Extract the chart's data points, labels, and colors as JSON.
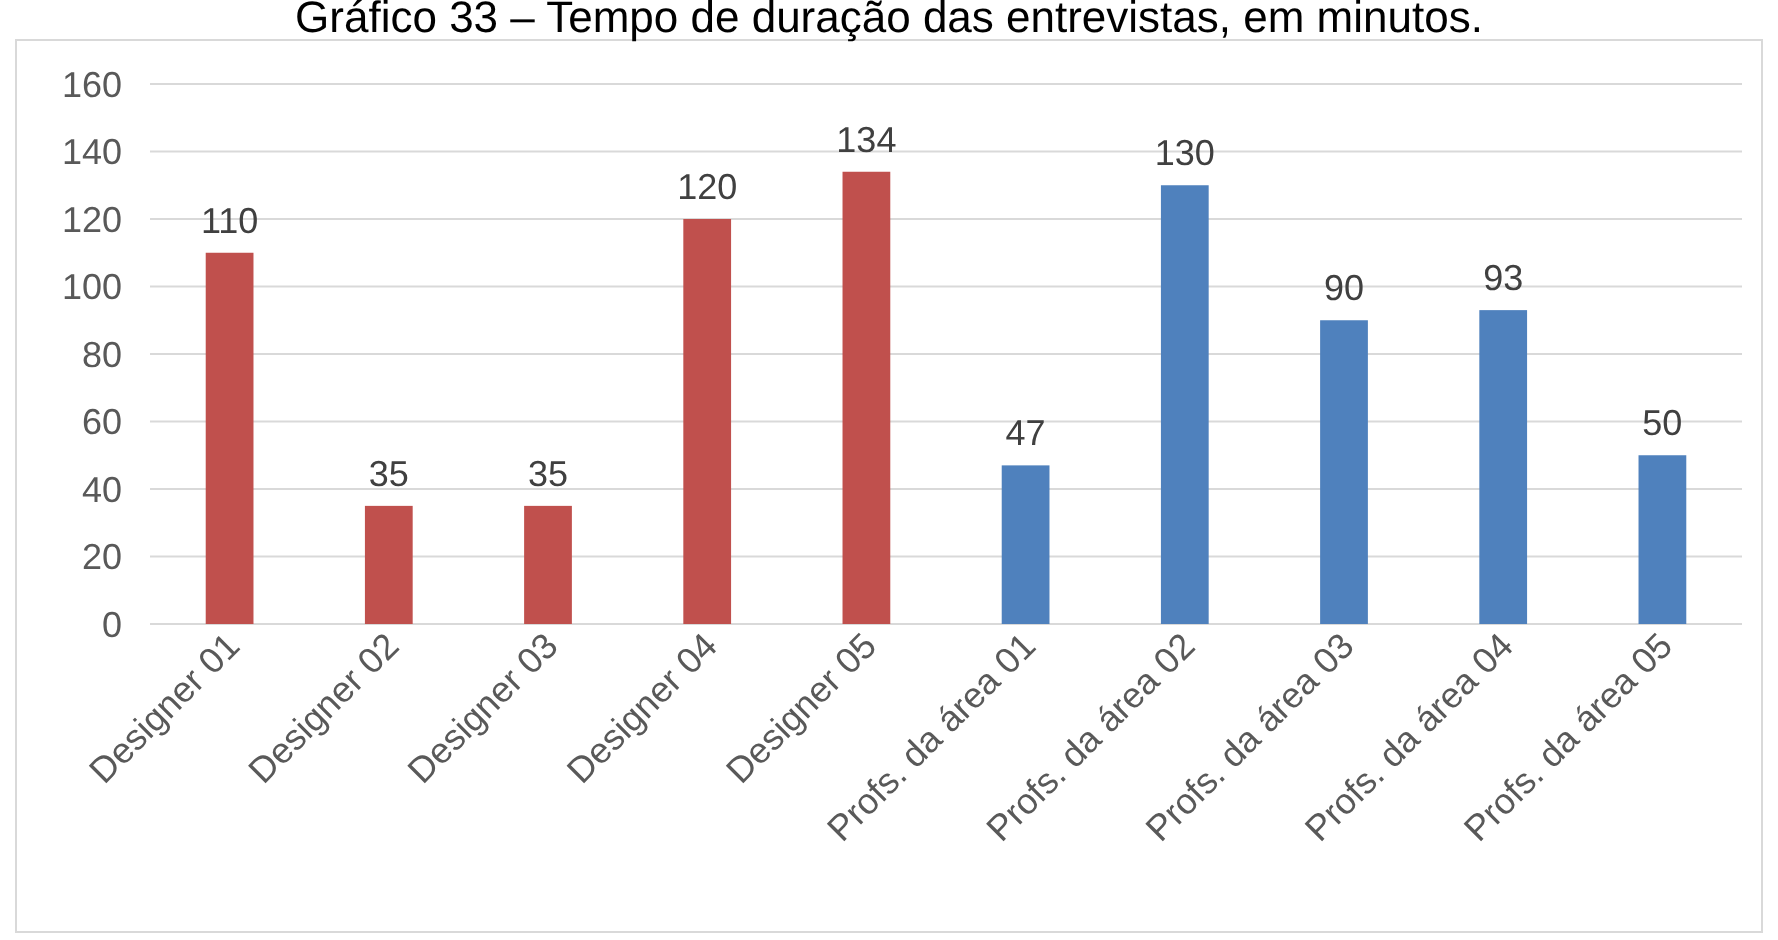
{
  "chart_data": {
    "type": "bar",
    "title": "Gráfico 33 – Tempo de duração das entrevistas, em minutos.",
    "categories": [
      "Designer 01",
      "Designer 02",
      "Designer 03",
      "Designer 04",
      "Designer 05",
      "Profs. da área 01",
      "Profs. da área 02",
      "Profs. da área 03",
      "Profs. da área 04",
      "Profs. da área 05"
    ],
    "values": [
      110,
      35,
      35,
      120,
      134,
      47,
      130,
      90,
      93,
      50
    ],
    "colors": [
      "#c0504d",
      "#c0504d",
      "#c0504d",
      "#c0504d",
      "#c0504d",
      "#4f81bd",
      "#4f81bd",
      "#4f81bd",
      "#4f81bd",
      "#4f81bd"
    ],
    "ylim": [
      0,
      160
    ],
    "yticks": [
      0,
      20,
      40,
      60,
      80,
      100,
      120,
      140,
      160
    ],
    "grid": "y",
    "data_labels": true
  }
}
